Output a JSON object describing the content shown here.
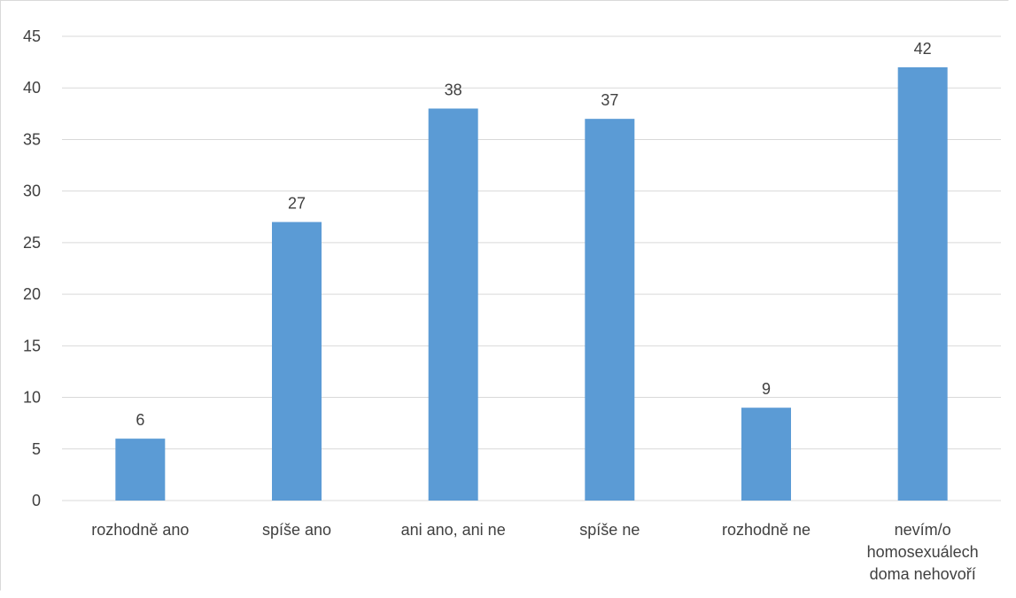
{
  "chart_data": {
    "type": "bar",
    "categories": [
      [
        "rozhodně ano"
      ],
      [
        "spíše ano"
      ],
      [
        "ani ano, ani ne"
      ],
      [
        "spíše ne"
      ],
      [
        "rozhodně ne"
      ],
      [
        "nevím/o",
        "homosexuálech",
        "doma nehovoří"
      ]
    ],
    "values": [
      6,
      27,
      38,
      37,
      9,
      42
    ],
    "ylim": [
      0,
      45
    ],
    "yticks": [
      0,
      5,
      10,
      15,
      20,
      25,
      30,
      35,
      40,
      45
    ],
    "grid": true,
    "data_labels": true,
    "legend": "none",
    "colors": {
      "bar": "#5b9bd5",
      "grid": "#d9d9d9",
      "text": "#404040",
      "axis": "#d9d9d9"
    }
  }
}
